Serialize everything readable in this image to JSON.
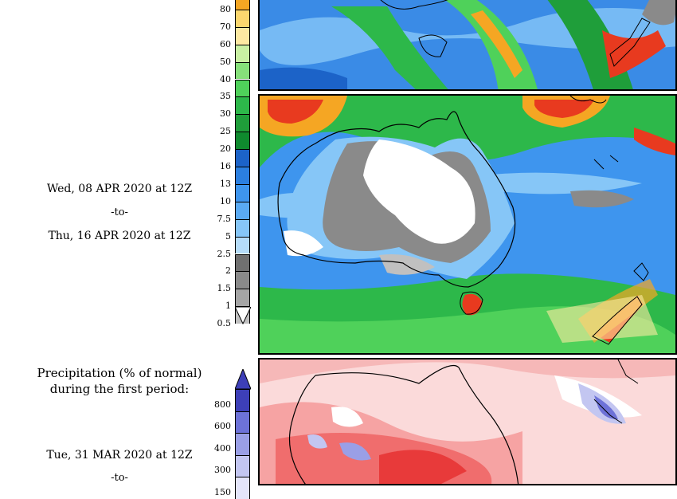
{
  "period_panel": {
    "start": "Wed, 08 APR 2020 at 12Z",
    "separator": "-to-",
    "end": "Thu, 16 APR 2020 at 12Z"
  },
  "precip_scale": {
    "ticks": [
      "80",
      "70",
      "60",
      "50",
      "40",
      "35",
      "30",
      "25",
      "20",
      "16",
      "13",
      "10",
      "7.5",
      "5",
      "2.5",
      "2",
      "1.5",
      "1",
      "0.5"
    ],
    "colors": [
      "#f5a623",
      "#fcd76e",
      "#fde9a2",
      "#c9f0a3",
      "#86e07a",
      "#4fd15a",
      "#2db84a",
      "#1f9e3a",
      "#0f8a2e",
      "#1c63c8",
      "#2b7fe0",
      "#3e95ee",
      "#5aaaf3",
      "#86c6f7",
      "#b5dcf9",
      "#707070",
      "#8a8a8a",
      "#a5a5a5",
      "#c0c0c0"
    ]
  },
  "anomaly_panel": {
    "title_line1": "Precipitation (% of normal)",
    "title_line2": "during the first period:",
    "start": "Tue, 31 MAR 2020 at 12Z",
    "separator": "-to-"
  },
  "anomaly_scale": {
    "ticks": [
      "800",
      "600",
      "400",
      "300",
      "150"
    ],
    "colors": [
      "#3d3fb8",
      "#6d72d8",
      "#9a9fe6",
      "#c3c6f1",
      "#e4e5fa"
    ]
  }
}
